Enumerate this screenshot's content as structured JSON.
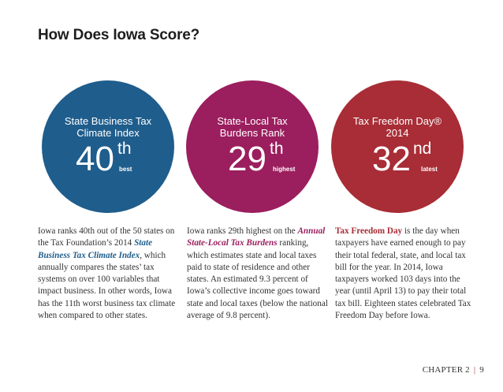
{
  "page": {
    "title": "How Does Iowa Score?"
  },
  "stats": [
    {
      "label_line1": "State Business Tax",
      "label_line2": "Climate Index",
      "number": "40",
      "suffix": "th",
      "word": "best",
      "color": "#1f5d8c"
    },
    {
      "label_line1": "State-Local Tax",
      "label_line2": "Burdens Rank",
      "number": "29",
      "suffix": "th",
      "word": "highest",
      "color": "#9b1e5e"
    },
    {
      "label_line1": "Tax Freedom Day®",
      "label_line2": "2014",
      "number": "32",
      "suffix": "nd",
      "word": "latest",
      "color": "#a82d36"
    }
  ],
  "columns": {
    "col1": {
      "before": "Iowa ranks 40th out of the 50 states on the Tax Foundation’s 2014 ",
      "link": "State Business Tax Climate Index",
      "after": ", which annually compares the states’ tax systems on over 100 variables that impact business. In other words, Iowa has the 11th worst business tax climate when compared to other states."
    },
    "col2": {
      "before": "Iowa ranks 29th highest on the ",
      "link": "Annual State-Local Tax Burdens",
      "after": " ranking, which estimates state and local taxes paid to state of residence and other states. An estimated 9.3 percent of Iowa’s collective income goes toward state and local taxes (below the national average of 9.8 percent)."
    },
    "col3": {
      "lead": "Tax Freedom Day",
      "after": " is the day when taxpayers have earned enough to pay their total federal, state, and local tax bill for the year. In 2014, Iowa taxpayers worked 103 days into the year (until April 13) to pay their total tax bill. Eighteen states celebrated Tax Freedom Day before Iowa."
    }
  },
  "footer": {
    "chapter": "CHAPTER 2",
    "separator": "|",
    "page_number": "9"
  }
}
